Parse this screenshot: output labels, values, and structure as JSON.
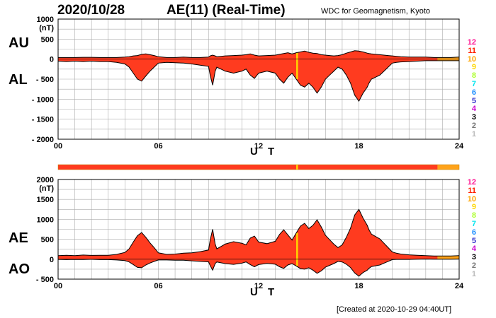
{
  "header": {
    "date": "2020/10/28",
    "title": "AE(11) (Real-Time)",
    "source": "WDC for Geomagnetism, Kyoto",
    "created": "[Created at 2020-10-29 04:40UT]"
  },
  "panel_labels": {
    "au": "AU",
    "al": "AL",
    "ae": "AE",
    "ao": "AO"
  },
  "colors": {
    "fill": "#ff3b1f",
    "outline": "#000000",
    "partial": "#ffa31a",
    "spike": "#ffd400",
    "grid": "#aaaaaa"
  },
  "legend": {
    "items": [
      {
        "label": "12",
        "color": "#ff1493"
      },
      {
        "label": "11",
        "color": "#ff2000"
      },
      {
        "label": "10",
        "color": "#ffa500"
      },
      {
        "label": "9",
        "color": "#ffd700"
      },
      {
        "label": "8",
        "color": "#adff2f"
      },
      {
        "label": "7",
        "color": "#00e5ee"
      },
      {
        "label": "6",
        "color": "#1e90ff"
      },
      {
        "label": "5",
        "color": "#3333cc"
      },
      {
        "label": "4",
        "color": "#cc00cc"
      },
      {
        "label": "3",
        "color": "#000000"
      },
      {
        "label": "2",
        "color": "#777777"
      },
      {
        "label": "1",
        "color": "#bbbbbb"
      }
    ]
  },
  "chart_data": [
    {
      "type": "area",
      "panel": "AU/AL",
      "xlabel": "U T",
      "ylabel": "(nT)",
      "xlim": [
        0,
        24
      ],
      "ylim": [
        -2000,
        1000
      ],
      "xticks": [
        "00",
        "06",
        "12",
        "18",
        "24"
      ],
      "yticks": [
        {
          "value": 1000,
          "label": "1000"
        },
        {
          "value": 500,
          "label": "500"
        },
        {
          "value": 0,
          "label": "0"
        },
        {
          "value": -500,
          "label": "- 500"
        },
        {
          "value": -1000,
          "label": "- 1000"
        },
        {
          "value": -1500,
          "label": "- 1500"
        },
        {
          "value": -2000,
          "label": "- 2000"
        }
      ],
      "x": [
        0,
        0.5,
        1,
        1.5,
        2,
        2.5,
        3,
        3.5,
        4,
        4.25,
        4.5,
        4.75,
        5,
        5.25,
        5.5,
        5.75,
        6,
        6.5,
        7,
        7.5,
        8,
        8.5,
        9,
        9.1,
        9.25,
        9.4,
        9.5,
        9.75,
        10,
        10.5,
        11,
        11.25,
        11.5,
        11.75,
        12,
        12.5,
        13,
        13.25,
        13.5,
        13.75,
        14,
        14.25,
        14.5,
        14.75,
        15,
        15.25,
        15.5,
        15.75,
        16,
        16.25,
        16.5,
        16.75,
        17,
        17.25,
        17.5,
        17.75,
        18,
        18.25,
        18.5,
        18.6,
        18.75,
        19,
        19.25,
        19.5,
        19.75,
        20,
        20.25,
        20.5,
        21,
        21.5,
        22,
        22.5,
        23,
        23.5,
        24
      ],
      "series": [
        {
          "name": "AU",
          "values": [
            40,
            40,
            40,
            45,
            45,
            40,
            40,
            40,
            50,
            60,
            80,
            90,
            120,
            130,
            110,
            90,
            60,
            40,
            40,
            50,
            40,
            40,
            50,
            80,
            100,
            80,
            60,
            70,
            80,
            90,
            100,
            110,
            130,
            100,
            80,
            90,
            100,
            120,
            140,
            160,
            130,
            160,
            180,
            200,
            170,
            150,
            140,
            110,
            100,
            90,
            80,
            90,
            110,
            150,
            180,
            210,
            200,
            180,
            150,
            140,
            130,
            120,
            110,
            100,
            90,
            80,
            70,
            60,
            50,
            50,
            50,
            40,
            40,
            40,
            50
          ]
        },
        {
          "name": "AL",
          "values": [
            -50,
            -60,
            -50,
            -60,
            -50,
            -60,
            -60,
            -80,
            -120,
            -200,
            -350,
            -500,
            -550,
            -420,
            -300,
            -200,
            -100,
            -80,
            -90,
            -100,
            -120,
            -150,
            -180,
            -400,
            -650,
            -300,
            -200,
            -250,
            -300,
            -350,
            -300,
            -250,
            -400,
            -480,
            -350,
            -300,
            -350,
            -500,
            -600,
            -450,
            -350,
            -500,
            -650,
            -700,
            -600,
            -700,
            -850,
            -700,
            -500,
            -400,
            -300,
            -200,
            -250,
            -400,
            -600,
            -900,
            -1050,
            -850,
            -700,
            -600,
            -500,
            -450,
            -400,
            -300,
            -200,
            -100,
            -80,
            -70,
            -60,
            -50,
            -40,
            -40,
            -40,
            -40,
            -40
          ]
        }
      ]
    },
    {
      "type": "area",
      "panel": "AE/AO",
      "xlabel": "U T",
      "ylabel": "(nT)",
      "xlim": [
        0,
        24
      ],
      "ylim": [
        -500,
        2000
      ],
      "xticks": [
        "00",
        "06",
        "12",
        "18",
        "24"
      ],
      "yticks": [
        {
          "value": 2000,
          "label": "2000"
        },
        {
          "value": 1500,
          "label": "1500"
        },
        {
          "value": 1000,
          "label": "1000"
        },
        {
          "value": 500,
          "label": "500"
        },
        {
          "value": 0,
          "label": "0"
        },
        {
          "value": -500,
          "label": "- 500"
        }
      ],
      "x": [
        0,
        0.5,
        1,
        1.5,
        2,
        2.5,
        3,
        3.5,
        4,
        4.25,
        4.5,
        4.75,
        5,
        5.25,
        5.5,
        5.75,
        6,
        6.5,
        7,
        7.5,
        8,
        8.5,
        9,
        9.1,
        9.25,
        9.4,
        9.5,
        9.75,
        10,
        10.5,
        11,
        11.25,
        11.5,
        11.75,
        12,
        12.5,
        13,
        13.25,
        13.5,
        13.75,
        14,
        14.25,
        14.5,
        14.75,
        15,
        15.25,
        15.5,
        15.75,
        16,
        16.25,
        16.5,
        16.75,
        17,
        17.25,
        17.5,
        17.75,
        18,
        18.25,
        18.5,
        18.6,
        18.75,
        19,
        19.25,
        19.5,
        19.75,
        20,
        20.25,
        20.5,
        21,
        21.5,
        22,
        22.5,
        23,
        23.5,
        24
      ],
      "series": [
        {
          "name": "AE",
          "values": [
            90,
            100,
            90,
            105,
            95,
            100,
            100,
            120,
            170,
            260,
            430,
            590,
            670,
            550,
            410,
            290,
            160,
            120,
            130,
            150,
            160,
            190,
            230,
            480,
            750,
            380,
            260,
            320,
            380,
            440,
            400,
            360,
            530,
            580,
            430,
            390,
            450,
            620,
            740,
            610,
            480,
            660,
            830,
            900,
            770,
            850,
            990,
            810,
            600,
            490,
            380,
            290,
            360,
            550,
            780,
            1110,
            1250,
            1030,
            850,
            740,
            630,
            570,
            510,
            400,
            290,
            180,
            150,
            130,
            110,
            100,
            90,
            80,
            80,
            80,
            90
          ]
        },
        {
          "name": "AO",
          "values": [
            -5,
            -10,
            -5,
            -8,
            -3,
            -10,
            -10,
            -20,
            -35,
            -70,
            -135,
            -205,
            -215,
            -145,
            -95,
            -55,
            -20,
            -20,
            -25,
            -25,
            -40,
            -55,
            -65,
            -160,
            -275,
            -110,
            -70,
            -90,
            -110,
            -130,
            -100,
            -70,
            -135,
            -190,
            -135,
            -105,
            -125,
            -190,
            -230,
            -145,
            -110,
            -170,
            -235,
            -250,
            -215,
            -275,
            -355,
            -295,
            -200,
            -155,
            -110,
            -55,
            -70,
            -125,
            -210,
            -345,
            -425,
            -335,
            -275,
            -230,
            -185,
            -165,
            -145,
            -100,
            -55,
            -10,
            -5,
            -5,
            -5,
            0,
            5,
            0,
            0,
            0,
            5
          ]
        }
      ]
    }
  ]
}
